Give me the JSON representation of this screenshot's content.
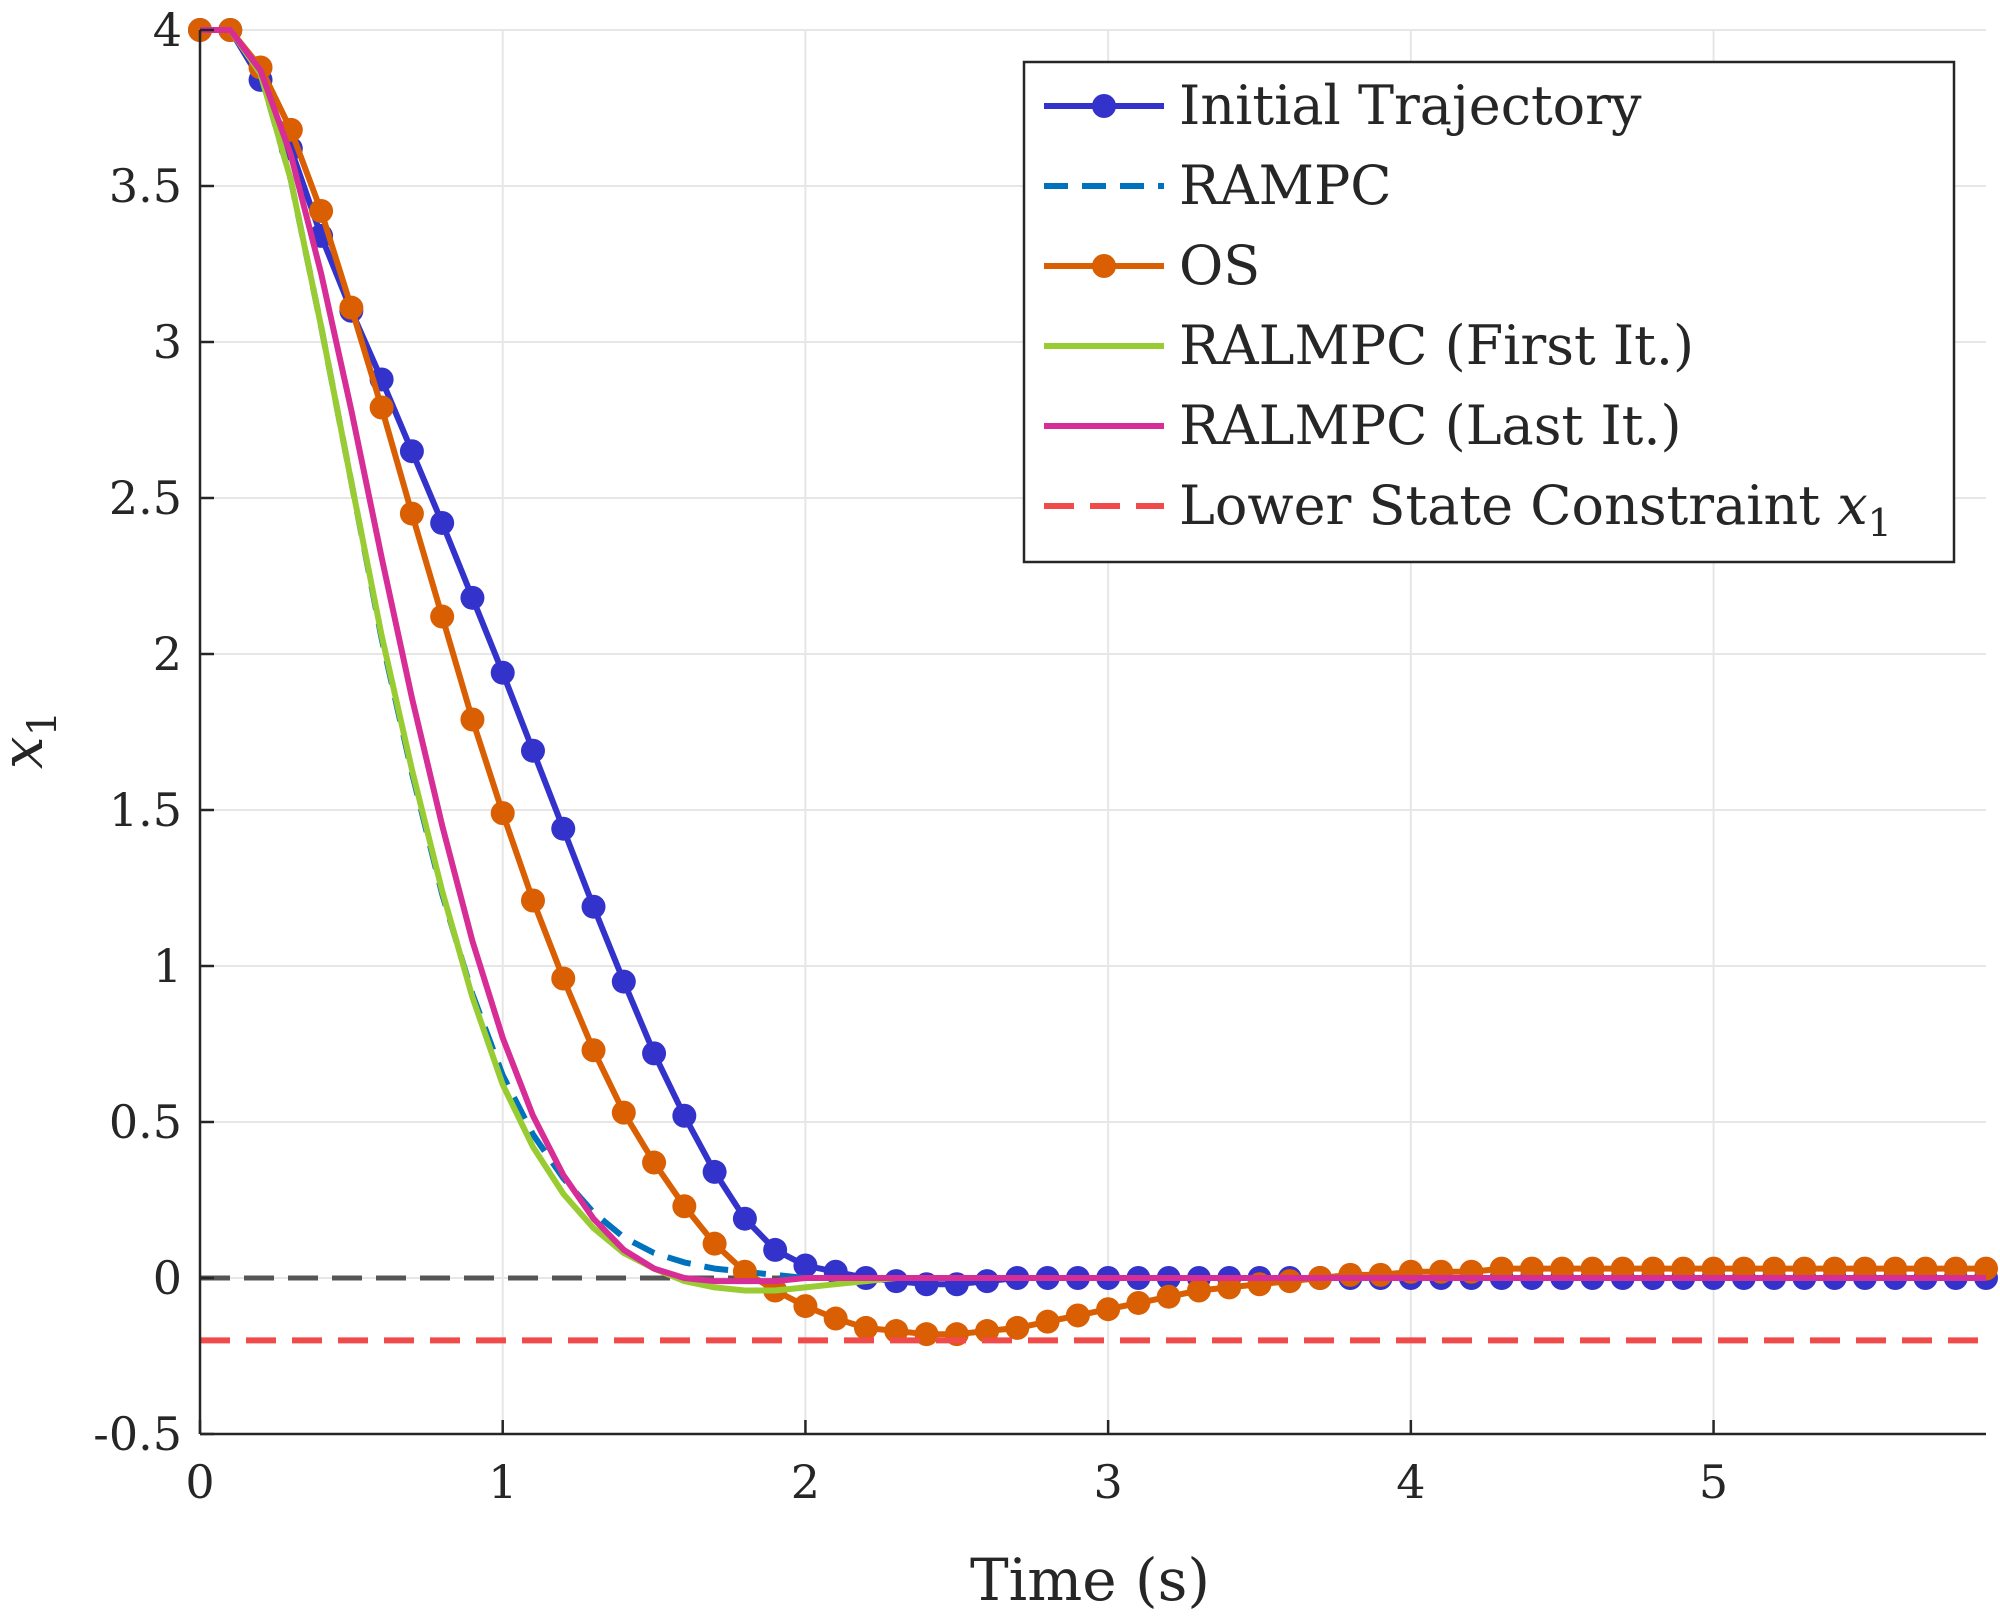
{
  "chart_data": {
    "type": "line",
    "title": "",
    "xlabel": "Time (s)",
    "ylabel": "x",
    "ylabel_subscript": "1",
    "xlim": [
      0,
      5.9
    ],
    "ylim": [
      -0.5,
      4
    ],
    "xticks": [
      0,
      1,
      2,
      3,
      4,
      5
    ],
    "yticks": [
      -0.5,
      0,
      0.5,
      1,
      1.5,
      2,
      2.5,
      3,
      3.5,
      4
    ],
    "xtick_labels": [
      "0",
      "1",
      "2",
      "3",
      "4",
      "5"
    ],
    "ytick_labels": [
      "-0.5",
      "0",
      "0.5",
      "1",
      "1.5",
      "2",
      "2.5",
      "3",
      "3.5",
      "4"
    ],
    "grid": true,
    "legend_position": "top-right",
    "reference_line": {
      "y": 0,
      "color": "#555555",
      "style": "dashed"
    },
    "series": [
      {
        "name": "Initial Trajectory",
        "color": "#3333cc",
        "style": "solid",
        "marker": "circle",
        "points": [
          [
            0,
            4
          ],
          [
            0.1,
            4
          ],
          [
            0.2,
            3.84
          ],
          [
            0.3,
            3.62
          ],
          [
            0.4,
            3.34
          ],
          [
            0.5,
            3.1
          ],
          [
            0.6,
            2.88
          ],
          [
            0.7,
            2.65
          ],
          [
            0.8,
            2.42
          ],
          [
            0.9,
            2.18
          ],
          [
            1.0,
            1.94
          ],
          [
            1.1,
            1.69
          ],
          [
            1.2,
            1.44
          ],
          [
            1.3,
            1.19
          ],
          [
            1.4,
            0.95
          ],
          [
            1.5,
            0.72
          ],
          [
            1.6,
            0.52
          ],
          [
            1.7,
            0.34
          ],
          [
            1.8,
            0.19
          ],
          [
            1.9,
            0.09
          ],
          [
            2.0,
            0.04
          ],
          [
            2.1,
            0.02
          ],
          [
            2.2,
            0.0
          ],
          [
            2.3,
            -0.01
          ],
          [
            2.4,
            -0.02
          ],
          [
            2.5,
            -0.02
          ],
          [
            2.6,
            -0.01
          ],
          [
            2.7,
            0.0
          ],
          [
            2.8,
            0.0
          ],
          [
            2.9,
            0.0
          ],
          [
            3.0,
            0.0
          ],
          [
            3.1,
            0.0
          ],
          [
            3.2,
            0.0
          ],
          [
            3.3,
            0.0
          ],
          [
            3.4,
            0.0
          ],
          [
            3.5,
            0.0
          ],
          [
            3.6,
            0.0
          ],
          [
            3.7,
            0.0
          ],
          [
            3.8,
            0.0
          ],
          [
            3.9,
            0.0
          ],
          [
            4.0,
            0.0
          ],
          [
            4.1,
            0.0
          ],
          [
            4.2,
            0.0
          ],
          [
            4.3,
            0.0
          ],
          [
            4.4,
            0.0
          ],
          [
            4.5,
            0.0
          ],
          [
            4.6,
            0.0
          ],
          [
            4.7,
            0.0
          ],
          [
            4.8,
            0.0
          ],
          [
            4.9,
            0.0
          ],
          [
            5.0,
            0.0
          ],
          [
            5.1,
            0.0
          ],
          [
            5.2,
            0.0
          ],
          [
            5.3,
            0.0
          ],
          [
            5.4,
            0.0
          ],
          [
            5.5,
            0.0
          ],
          [
            5.6,
            0.0
          ],
          [
            5.7,
            0.0
          ],
          [
            5.8,
            0.0
          ],
          [
            5.9,
            0.0
          ]
        ]
      },
      {
        "name": "RAMPC",
        "color": "#0072bd",
        "style": "dashed",
        "marker": "none",
        "points": [
          [
            0,
            4
          ],
          [
            0.1,
            4
          ],
          [
            0.2,
            3.86
          ],
          [
            0.3,
            3.52
          ],
          [
            0.4,
            3.05
          ],
          [
            0.5,
            2.55
          ],
          [
            0.6,
            2.05
          ],
          [
            0.7,
            1.62
          ],
          [
            0.8,
            1.23
          ],
          [
            0.9,
            0.91
          ],
          [
            1.0,
            0.65
          ],
          [
            1.1,
            0.46
          ],
          [
            1.2,
            0.32
          ],
          [
            1.3,
            0.21
          ],
          [
            1.4,
            0.13
          ],
          [
            1.5,
            0.08
          ],
          [
            1.6,
            0.05
          ],
          [
            1.7,
            0.03
          ],
          [
            1.8,
            0.02
          ],
          [
            1.9,
            0.01
          ],
          [
            2.0,
            0.0
          ],
          [
            2.5,
            0.0
          ],
          [
            3.0,
            0.0
          ],
          [
            3.5,
            0.0
          ],
          [
            4.0,
            0.0
          ],
          [
            4.5,
            0.0
          ],
          [
            5.0,
            0.0
          ],
          [
            5.5,
            0.0
          ],
          [
            5.9,
            0.0
          ]
        ]
      },
      {
        "name": "OS",
        "color": "#d95f02",
        "style": "solid",
        "marker": "circle",
        "points": [
          [
            0,
            4
          ],
          [
            0.1,
            4
          ],
          [
            0.2,
            3.88
          ],
          [
            0.3,
            3.68
          ],
          [
            0.4,
            3.42
          ],
          [
            0.5,
            3.11
          ],
          [
            0.6,
            2.79
          ],
          [
            0.7,
            2.45
          ],
          [
            0.8,
            2.12
          ],
          [
            0.9,
            1.79
          ],
          [
            1.0,
            1.49
          ],
          [
            1.1,
            1.21
          ],
          [
            1.2,
            0.96
          ],
          [
            1.3,
            0.73
          ],
          [
            1.4,
            0.53
          ],
          [
            1.5,
            0.37
          ],
          [
            1.6,
            0.23
          ],
          [
            1.7,
            0.11
          ],
          [
            1.8,
            0.02
          ],
          [
            1.9,
            -0.04
          ],
          [
            2.0,
            -0.09
          ],
          [
            2.1,
            -0.13
          ],
          [
            2.2,
            -0.16
          ],
          [
            2.3,
            -0.17
          ],
          [
            2.4,
            -0.18
          ],
          [
            2.5,
            -0.18
          ],
          [
            2.6,
            -0.17
          ],
          [
            2.7,
            -0.16
          ],
          [
            2.8,
            -0.14
          ],
          [
            2.9,
            -0.12
          ],
          [
            3.0,
            -0.1
          ],
          [
            3.1,
            -0.08
          ],
          [
            3.2,
            -0.06
          ],
          [
            3.3,
            -0.04
          ],
          [
            3.4,
            -0.03
          ],
          [
            3.5,
            -0.02
          ],
          [
            3.6,
            -0.01
          ],
          [
            3.7,
            0.0
          ],
          [
            3.8,
            0.01
          ],
          [
            3.9,
            0.01
          ],
          [
            4.0,
            0.02
          ],
          [
            4.1,
            0.02
          ],
          [
            4.2,
            0.02
          ],
          [
            4.3,
            0.03
          ],
          [
            4.4,
            0.03
          ],
          [
            4.5,
            0.03
          ],
          [
            4.6,
            0.03
          ],
          [
            4.7,
            0.03
          ],
          [
            4.8,
            0.03
          ],
          [
            4.9,
            0.03
          ],
          [
            5.0,
            0.03
          ],
          [
            5.1,
            0.03
          ],
          [
            5.2,
            0.03
          ],
          [
            5.3,
            0.03
          ],
          [
            5.4,
            0.03
          ],
          [
            5.5,
            0.03
          ],
          [
            5.6,
            0.03
          ],
          [
            5.7,
            0.03
          ],
          [
            5.8,
            0.03
          ],
          [
            5.9,
            0.03
          ]
        ]
      },
      {
        "name": "RALMPC (First It.)",
        "color": "#99cc33",
        "style": "solid",
        "marker": "none",
        "points": [
          [
            0,
            4
          ],
          [
            0.1,
            4
          ],
          [
            0.2,
            3.86
          ],
          [
            0.3,
            3.52
          ],
          [
            0.4,
            3.05
          ],
          [
            0.5,
            2.55
          ],
          [
            0.6,
            2.06
          ],
          [
            0.7,
            1.63
          ],
          [
            0.8,
            1.24
          ],
          [
            0.9,
            0.9
          ],
          [
            1.0,
            0.62
          ],
          [
            1.1,
            0.42
          ],
          [
            1.2,
            0.27
          ],
          [
            1.3,
            0.16
          ],
          [
            1.4,
            0.08
          ],
          [
            1.5,
            0.03
          ],
          [
            1.6,
            -0.01
          ],
          [
            1.7,
            -0.03
          ],
          [
            1.8,
            -0.04
          ],
          [
            1.9,
            -0.04
          ],
          [
            2.0,
            -0.03
          ],
          [
            2.1,
            -0.02
          ],
          [
            2.2,
            -0.01
          ],
          [
            2.3,
            0.0
          ],
          [
            2.5,
            0.0
          ],
          [
            3.0,
            0.0
          ],
          [
            3.5,
            0.0
          ],
          [
            4.0,
            0.0
          ],
          [
            4.5,
            0.0
          ],
          [
            5.0,
            0.0
          ],
          [
            5.5,
            0.0
          ],
          [
            5.9,
            0.0
          ]
        ]
      },
      {
        "name": "RALMPC (Last It.)",
        "color": "#d62d96",
        "style": "solid",
        "marker": "none",
        "points": [
          [
            0,
            4
          ],
          [
            0.1,
            4
          ],
          [
            0.2,
            3.87
          ],
          [
            0.3,
            3.6
          ],
          [
            0.4,
            3.22
          ],
          [
            0.5,
            2.78
          ],
          [
            0.6,
            2.31
          ],
          [
            0.7,
            1.86
          ],
          [
            0.8,
            1.45
          ],
          [
            0.9,
            1.08
          ],
          [
            1.0,
            0.77
          ],
          [
            1.1,
            0.52
          ],
          [
            1.2,
            0.33
          ],
          [
            1.3,
            0.19
          ],
          [
            1.4,
            0.09
          ],
          [
            1.5,
            0.03
          ],
          [
            1.6,
            0.0
          ],
          [
            1.7,
            -0.01
          ],
          [
            1.8,
            -0.01
          ],
          [
            1.9,
            -0.01
          ],
          [
            2.0,
            0.0
          ],
          [
            2.5,
            0.0
          ],
          [
            3.0,
            0.0
          ],
          [
            3.5,
            0.0
          ],
          [
            4.0,
            0.0
          ],
          [
            4.5,
            0.0
          ],
          [
            5.0,
            0.0
          ],
          [
            5.5,
            0.0
          ],
          [
            5.9,
            0.0
          ]
        ]
      },
      {
        "name": "Lower State Constraint x",
        "name_subscript": "1",
        "color": "#f04a4a",
        "style": "dashed",
        "marker": "none",
        "points": [
          [
            0,
            -0.2
          ],
          [
            5.9,
            -0.2
          ]
        ]
      }
    ]
  }
}
